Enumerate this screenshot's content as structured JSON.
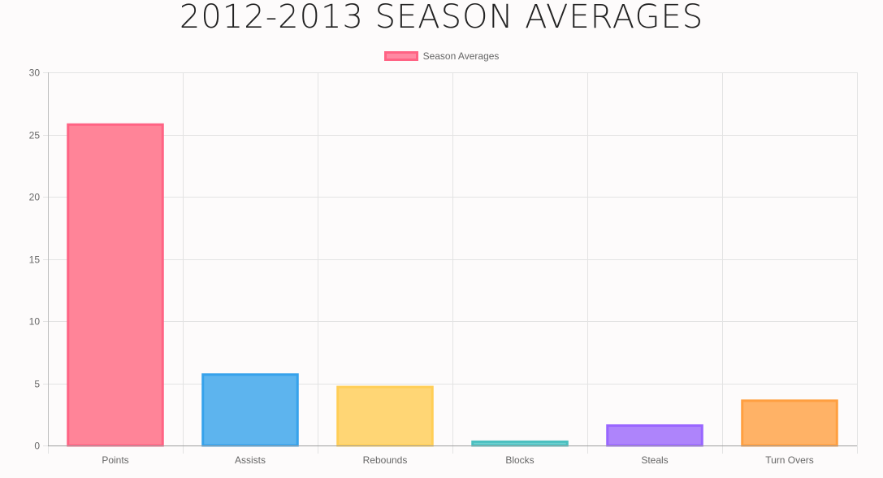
{
  "page": {
    "title": "2012-2013 SEASON AVERAGES"
  },
  "legend": {
    "label": "Season Averages",
    "color": "#ff6384"
  },
  "chart_data": {
    "type": "bar",
    "title": "2012-2013 SEASON AVERAGES",
    "categories": [
      "Points",
      "Assists",
      "Rebounds",
      "Blocks",
      "Steals",
      "Turn Overs"
    ],
    "series": [
      {
        "name": "Season Averages",
        "values": [
          25.9,
          5.8,
          4.8,
          0.4,
          1.7,
          3.7
        ]
      }
    ],
    "colors": {
      "fill": [
        "#ff8498",
        "#5db4ee",
        "#ffd675",
        "#6ecfcf",
        "#ae84fb",
        "#ffb266"
      ],
      "border": [
        "#ff6384",
        "#36a2eb",
        "#ffce56",
        "#4bc0c0",
        "#9966ff",
        "#ff9f40"
      ]
    },
    "yticks": [
      0,
      5,
      10,
      15,
      20,
      25,
      30
    ],
    "ylim": [
      0,
      30
    ],
    "xlabel": "",
    "ylabel": "",
    "grid": true,
    "legend_position": "top-center"
  }
}
